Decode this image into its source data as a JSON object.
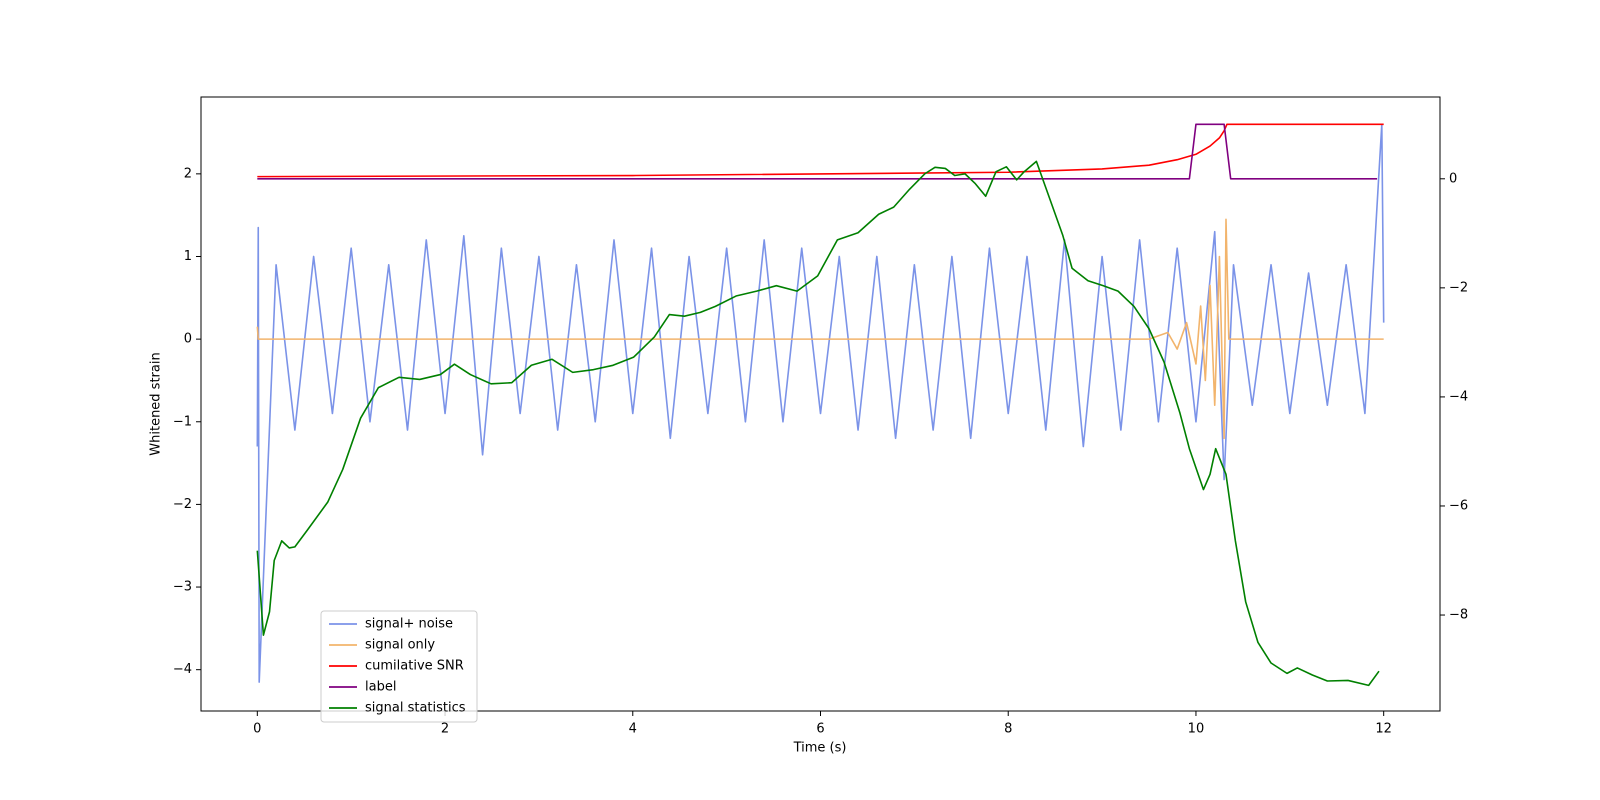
{
  "chart_data": {
    "type": "line",
    "xlabel": "Time (s)",
    "ylabel": "Whitened strain",
    "xlim": [
      -0.6,
      12.6
    ],
    "ylim": [
      -4.5,
      2.93
    ],
    "y2lim": [
      -9.76,
      1.5
    ],
    "xticks": [
      0,
      2,
      4,
      6,
      8,
      10,
      12
    ],
    "yticks": [
      {
        "value": -4,
        "label": "−4"
      },
      {
        "value": -3,
        "label": "−3"
      },
      {
        "value": -2,
        "label": "−2"
      },
      {
        "value": -1,
        "label": "−1"
      },
      0,
      1,
      2
    ],
    "y2ticks": [
      {
        "value": -8,
        "label": "−8"
      },
      {
        "value": -6,
        "label": "−6"
      },
      {
        "value": -4,
        "label": "−4"
      },
      {
        "value": -2,
        "label": "−2"
      },
      0
    ],
    "legend": "lower left",
    "series": [
      {
        "name": "signal+ noise",
        "color": "#7b93e8",
        "x": [
          0,
          0.01,
          0.02,
          0.2,
          0.4,
          0.6,
          0.8,
          1.0,
          1.2,
          1.4,
          1.6,
          1.8,
          2.0,
          2.2,
          2.4,
          2.6,
          2.8,
          3.0,
          3.2,
          3.4,
          3.6,
          3.8,
          4.0,
          4.2,
          4.4,
          4.6,
          4.8,
          5.0,
          5.2,
          5.4,
          5.6,
          5.8,
          6.0,
          6.2,
          6.4,
          6.6,
          6.8,
          7.0,
          7.2,
          7.4,
          7.6,
          7.8,
          8.0,
          8.2,
          8.4,
          8.6,
          8.8,
          9.0,
          9.2,
          9.4,
          9.6,
          9.8,
          10.0,
          10.2,
          10.3,
          10.4,
          10.6,
          10.8,
          11.0,
          11.2,
          11.4,
          11.6,
          11.8,
          11.98,
          12.0
        ],
        "values": [
          -1.3,
          1.35,
          -4.15,
          0.9,
          -1.1,
          1.0,
          -0.9,
          1.1,
          -1.0,
          0.9,
          -1.1,
          1.2,
          -0.9,
          1.25,
          -1.4,
          1.1,
          -0.9,
          1.0,
          -1.1,
          0.9,
          -1.0,
          1.2,
          -0.9,
          1.1,
          -1.2,
          1.0,
          -0.9,
          1.1,
          -1.0,
          1.2,
          -1.0,
          1.1,
          -0.9,
          1.0,
          -1.1,
          1.0,
          -1.2,
          0.9,
          -1.1,
          1.0,
          -1.2,
          1.1,
          -0.9,
          1.0,
          -1.1,
          1.2,
          -1.3,
          1.0,
          -1.1,
          1.2,
          -1.0,
          1.1,
          -1.0,
          1.3,
          -1.7,
          0.9,
          -0.8,
          0.9,
          -0.9,
          0.8,
          -0.8,
          0.9,
          -0.9,
          2.6,
          0.2
        ]
      },
      {
        "name": "signal only",
        "color": "#f2b46c",
        "x": [
          0,
          0.01,
          9.5,
          9.7,
          9.8,
          9.9,
          10.0,
          10.05,
          10.1,
          10.15,
          10.2,
          10.25,
          10.3,
          10.32,
          10.35,
          12.0
        ],
        "values": [
          0.15,
          0,
          0,
          0.08,
          -0.12,
          0.2,
          -0.3,
          0.4,
          -0.5,
          0.65,
          -0.8,
          1.0,
          -1.2,
          1.45,
          0,
          0
        ]
      },
      {
        "name": "cumilative SNR",
        "color": "red",
        "axis": "y2",
        "x": [
          0,
          4,
          8,
          9,
          9.5,
          9.8,
          10.0,
          10.15,
          10.25,
          10.3,
          10.33,
          12.0
        ],
        "values": [
          0.04,
          0.06,
          0.12,
          0.18,
          0.25,
          0.35,
          0.45,
          0.6,
          0.75,
          0.88,
          1.0,
          1.0
        ]
      },
      {
        "name": "label",
        "color": "purple",
        "axis": "y2",
        "x": [
          0,
          9.93,
          10.0,
          10.3,
          10.37,
          11.93
        ],
        "values": [
          0,
          0,
          1,
          1,
          0,
          0
        ]
      },
      {
        "name": "signal statistics",
        "color": "green",
        "axis": "y2",
        "x": [
          0,
          0.065,
          0.13,
          0.18,
          0.26,
          0.34,
          0.4,
          0.53,
          0.75,
          0.91,
          1.1,
          1.29,
          1.51,
          1.73,
          1.95,
          2.1,
          2.27,
          2.49,
          2.71,
          2.92,
          3.14,
          3.36,
          3.58,
          3.79,
          4.01,
          4.23,
          4.39,
          4.55,
          4.72,
          4.88,
          5.1,
          5.32,
          5.53,
          5.75,
          5.97,
          6.18,
          6.4,
          6.62,
          6.78,
          6.95,
          7.11,
          7.22,
          7.33,
          7.43,
          7.54,
          7.65,
          7.76,
          7.87,
          7.98,
          8.09,
          8.17,
          8.3,
          8.41,
          8.58,
          8.68,
          8.85,
          9.01,
          9.17,
          9.34,
          9.5,
          9.66,
          9.83,
          9.93,
          10.08,
          10.15,
          10.21,
          10.32,
          10.42,
          10.53,
          10.66,
          10.8,
          10.97,
          11.08,
          11.24,
          11.4,
          11.62,
          11.84,
          11.95
        ],
        "values": [
          -6.82,
          -8.37,
          -7.94,
          -7.0,
          -6.64,
          -6.77,
          -6.75,
          -6.45,
          -5.93,
          -5.33,
          -4.39,
          -3.83,
          -3.64,
          -3.68,
          -3.59,
          -3.4,
          -3.59,
          -3.76,
          -3.74,
          -3.42,
          -3.31,
          -3.55,
          -3.5,
          -3.42,
          -3.27,
          -2.9,
          -2.49,
          -2.52,
          -2.45,
          -2.34,
          -2.15,
          -2.06,
          -1.96,
          -2.06,
          -1.78,
          -1.12,
          -0.99,
          -0.65,
          -0.52,
          -0.19,
          0.09,
          0.21,
          0.19,
          0.06,
          0.09,
          -0.09,
          -0.32,
          0.13,
          0.22,
          -0.02,
          0.13,
          0.32,
          -0.21,
          -1.03,
          -1.64,
          -1.87,
          -1.96,
          -2.06,
          -2.34,
          -2.75,
          -3.36,
          -4.3,
          -4.95,
          -5.7,
          -5.42,
          -4.95,
          -5.42,
          -6.64,
          -7.76,
          -8.5,
          -8.88,
          -9.07,
          -8.97,
          -9.1,
          -9.21,
          -9.2,
          -9.29,
          -9.03
        ]
      }
    ]
  }
}
